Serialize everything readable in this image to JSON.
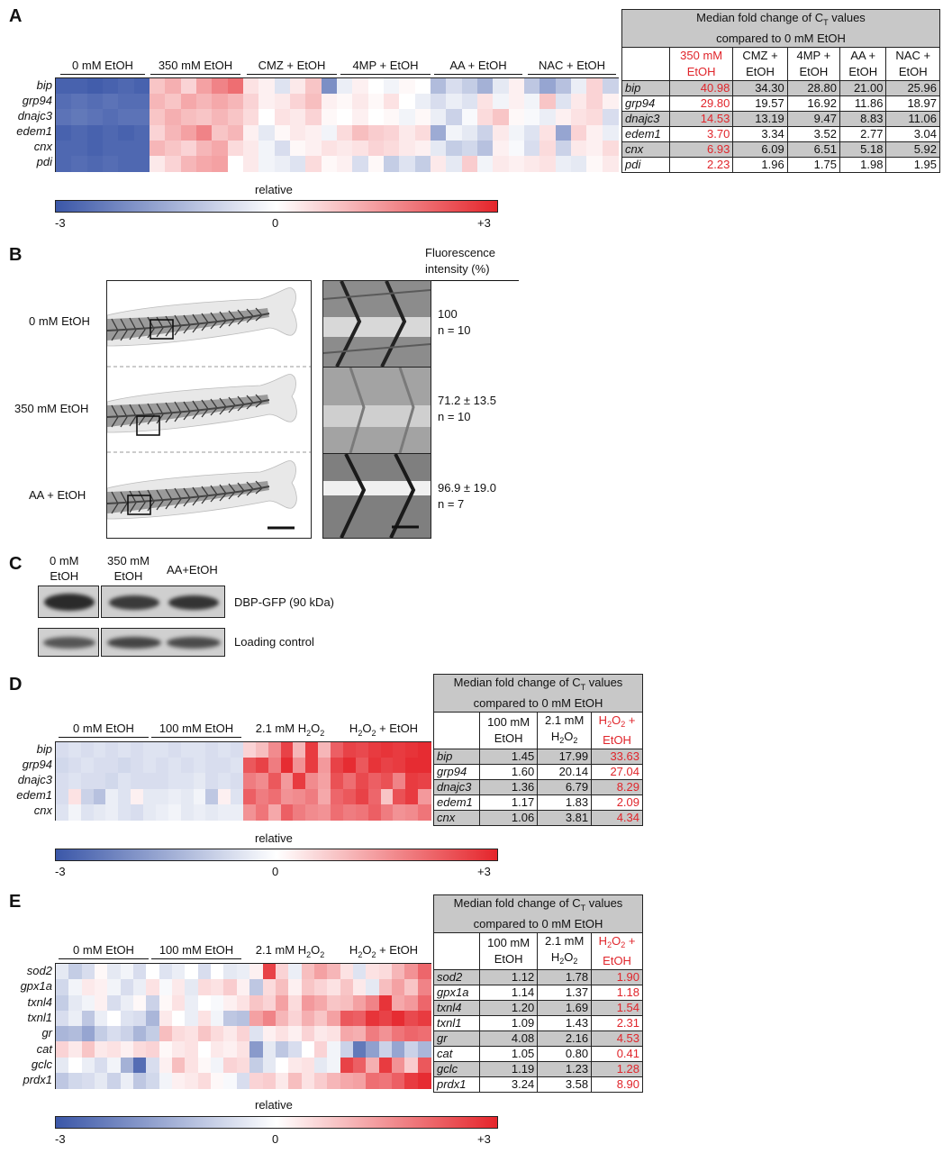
{
  "colorbar": {
    "label": "relative",
    "min": "-3",
    "mid": "0",
    "max": "+3"
  },
  "panels": {
    "A": {
      "letter": "A",
      "groups": [
        "0 mM EtOH",
        "350 mM EtOH",
        "CMZ + EtOH",
        "4MP + EtOH",
        "AA + EtOH",
        "NAC + EtOH"
      ],
      "genes": [
        "bip",
        "grp94",
        "dnajc3",
        "edem1",
        "cnx",
        "pdi"
      ],
      "table": {
        "title_line1": "Median fold change of C",
        "title_sub": "T",
        "title_line1_end": " values",
        "title_line2": "compared to 0 mM EtOH",
        "columns": [
          {
            "l1": "350 mM",
            "l2": "EtOH",
            "red": true
          },
          {
            "l1": "CMZ +",
            "l2": "EtOH",
            "red": false
          },
          {
            "l1": "4MP +",
            "l2": "EtOH",
            "red": false
          },
          {
            "l1": "AA +",
            "l2": "EtOH",
            "red": false
          },
          {
            "l1": "NAC +",
            "l2": "EtOH",
            "red": false
          }
        ],
        "rows": [
          {
            "gene": "bip",
            "values": [
              "40.98",
              "34.30",
              "28.80",
              "21.00",
              "25.96"
            ]
          },
          {
            "gene": "grp94",
            "values": [
              "29.80",
              "19.57",
              "16.92",
              "11.86",
              "18.97"
            ]
          },
          {
            "gene": "dnajc3",
            "values": [
              "14.53",
              "13.19",
              "9.47",
              "8.83",
              "11.06"
            ]
          },
          {
            "gene": "edem1",
            "values": [
              "3.70",
              "3.34",
              "3.52",
              "2.77",
              "3.04"
            ]
          },
          {
            "gene": "cnx",
            "values": [
              "6.93",
              "6.09",
              "6.51",
              "5.18",
              "5.92"
            ]
          },
          {
            "gene": "pdi",
            "values": [
              "2.23",
              "1.96",
              "1.75",
              "1.98",
              "1.95"
            ]
          }
        ]
      }
    },
    "B": {
      "letter": "B",
      "header_l1": "Fluorescence",
      "header_l2": "intensity (%)",
      "rows": [
        {
          "label": "0 mM EtOH",
          "value": "100",
          "n": "n = 10"
        },
        {
          "label": "350 mM EtOH",
          "value": "71.2 ± 13.5",
          "n": "n = 10"
        },
        {
          "label": "AA + EtOH",
          "value": "96.9 ± 19.0",
          "n": "n = 7"
        }
      ]
    },
    "C": {
      "letter": "C",
      "lanes": [
        {
          "l1": "0 mM",
          "l2": "EtOH"
        },
        {
          "l1": "350 mM",
          "l2": "EtOH"
        },
        {
          "l1": "AA+EtOH",
          "l2": ""
        }
      ],
      "band1_label": "DBP-GFP (90 kDa)",
      "band2_label": "Loading control"
    },
    "D": {
      "letter": "D",
      "groups": [
        "0 mM EtOH",
        "100 mM EtOH",
        "2.1 mM H",
        "H"
      ],
      "group_parts": [
        {
          "a": "0 mM EtOH",
          "sub": "",
          "b": ""
        },
        {
          "a": "100 mM EtOH",
          "sub": "",
          "b": ""
        },
        {
          "a": "2.1 mM H",
          "sub": "2",
          "b": "O",
          "sub2": "2",
          "c": ""
        },
        {
          "a": "H",
          "sub": "2",
          "b": "O",
          "sub2": "2",
          "c": " + EtOH"
        }
      ],
      "genes": [
        "bip",
        "grp94",
        "dnajc3",
        "edem1",
        "cnx"
      ],
      "table": {
        "title_line1": "Median fold change of C",
        "title_sub": "T",
        "title_line1_end": " values",
        "title_line2": "compared to 0 mM EtOH",
        "columns": [
          {
            "l1": "100 mM",
            "l2": "EtOH",
            "red": false
          },
          {
            "l1": "2.1 mM",
            "l2a": "H",
            "l2s": "2",
            "l2b": "O",
            "l2s2": "2",
            "red": false
          },
          {
            "l1a": "H",
            "l1s": "2",
            "l1b": "O",
            "l1s2": "2",
            "l1c": " +",
            "l2": "EtOH",
            "red": true
          }
        ],
        "rows": [
          {
            "gene": "bip",
            "values": [
              "1.45",
              "17.99",
              "33.63"
            ]
          },
          {
            "gene": "grp94",
            "values": [
              "1.60",
              "20.14",
              "27.04"
            ]
          },
          {
            "gene": "dnajc3",
            "values": [
              "1.36",
              "6.79",
              "8.29"
            ]
          },
          {
            "gene": "edem1",
            "values": [
              "1.17",
              "1.83",
              "2.09"
            ]
          },
          {
            "gene": "cnx",
            "values": [
              "1.06",
              "3.81",
              "4.34"
            ]
          }
        ]
      }
    },
    "E": {
      "letter": "E",
      "genes": [
        "sod2",
        "gpx1a",
        "txnl4",
        "txnl1",
        "gr",
        "cat",
        "gclc",
        "prdx1"
      ],
      "table": {
        "rows": [
          {
            "gene": "sod2",
            "values": [
              "1.12",
              "1.78",
              "1.90"
            ]
          },
          {
            "gene": "gpx1a",
            "values": [
              "1.14",
              "1.37",
              "1.18"
            ]
          },
          {
            "gene": "txnl4",
            "values": [
              "1.20",
              "1.69",
              "1.54"
            ]
          },
          {
            "gene": "txnl1",
            "values": [
              "1.09",
              "1.43",
              "2.31"
            ]
          },
          {
            "gene": "gr",
            "values": [
              "4.08",
              "2.16",
              "4.53"
            ]
          },
          {
            "gene": "cat",
            "values": [
              "1.05",
              "0.80",
              "0.41"
            ]
          },
          {
            "gene": "gclc",
            "values": [
              "1.19",
              "1.23",
              "1.28"
            ]
          },
          {
            "gene": "prdx1",
            "values": [
              "3.24",
              "3.58",
              "8.90"
            ]
          }
        ]
      }
    }
  },
  "heatmaps": {
    "A": [
      [
        -2.8,
        -2.8,
        -2.9,
        -2.8,
        -2.7,
        -2.8,
        0.8,
        1.1,
        0.6,
        1.3,
        1.7,
        2.0,
        0.4,
        0.2,
        -0.5,
        0.3,
        0.8,
        -2.0,
        -0.3,
        0.2,
        0.0,
        -0.2,
        0.1,
        0.0,
        -1.2,
        -0.6,
        -0.9,
        -1.4,
        -0.4,
        0.2,
        -1.0,
        -1.6,
        -1.1,
        -0.3,
        0.6,
        -0.8
      ],
      [
        -2.6,
        -2.5,
        -2.6,
        -2.5,
        -2.6,
        -2.6,
        1.0,
        0.8,
        1.2,
        1.0,
        1.2,
        1.0,
        0.6,
        0.2,
        0.3,
        0.6,
        0.9,
        0.2,
        0.1,
        0.3,
        0.1,
        0.4,
        0.0,
        -0.3,
        -0.6,
        -0.3,
        -0.5,
        0.4,
        -0.2,
        0.2,
        -0.2,
        0.8,
        -0.5,
        0.3,
        0.6,
        0.2
      ],
      [
        -2.5,
        -2.4,
        -2.5,
        -2.6,
        -2.5,
        -2.5,
        0.8,
        1.1,
        0.9,
        0.8,
        1.0,
        0.8,
        0.5,
        0.0,
        0.4,
        0.3,
        0.6,
        0.1,
        0.0,
        0.2,
        0.0,
        0.1,
        -0.2,
        0.1,
        -0.3,
        -0.8,
        -0.1,
        0.5,
        0.8,
        0.1,
        -0.1,
        -0.3,
        0.2,
        0.4,
        0.5,
        -0.6
      ],
      [
        -2.8,
        -2.7,
        -2.8,
        -2.7,
        -2.8,
        -2.7,
        0.6,
        1.0,
        1.3,
        1.7,
        0.8,
        1.0,
        0.2,
        -0.4,
        0.1,
        0.3,
        0.2,
        -0.2,
        0.5,
        0.9,
        0.7,
        0.6,
        0.3,
        0.5,
        -1.5,
        -0.2,
        -0.4,
        -0.8,
        0.3,
        -0.2,
        -0.5,
        0.4,
        -1.6,
        0.6,
        0.2,
        -0.3
      ],
      [
        -2.7,
        -2.7,
        -2.8,
        -2.7,
        -2.7,
        -2.7,
        1.0,
        0.8,
        0.6,
        1.0,
        1.2,
        0.5,
        0.3,
        -0.2,
        -0.6,
        0.1,
        0.2,
        0.4,
        0.3,
        0.4,
        0.6,
        0.5,
        0.3,
        0.2,
        -0.4,
        -0.9,
        -0.7,
        -1.1,
        0.2,
        -0.1,
        -0.6,
        0.5,
        -0.8,
        0.3,
        0.2,
        0.5
      ],
      [
        -2.7,
        -2.6,
        -2.7,
        -2.6,
        -2.7,
        -2.7,
        0.3,
        0.6,
        1.0,
        1.2,
        1.3,
        0.0,
        0.3,
        -0.2,
        -0.3,
        -0.5,
        0.5,
        0.1,
        0.2,
        -0.6,
        0.1,
        -0.9,
        -0.5,
        -0.9,
        0.3,
        -0.4,
        0.7,
        -0.2,
        0.3,
        0.2,
        0.3,
        0.4,
        -0.3,
        -0.4,
        0.1,
        0.3
      ]
    ],
    "D": [
      [
        -0.6,
        -0.5,
        -0.6,
        -0.5,
        -0.6,
        -0.5,
        -0.6,
        -0.5,
        -0.5,
        -0.6,
        -0.5,
        -0.5,
        -0.6,
        -0.5,
        -0.6,
        0.6,
        0.9,
        1.6,
        2.6,
        1.0,
        2.7,
        1.0,
        2.2,
        2.6,
        2.5,
        2.7,
        2.8,
        2.7,
        2.8,
        2.9
      ],
      [
        -0.7,
        -0.6,
        -0.5,
        -0.6,
        -0.6,
        -0.7,
        -0.6,
        -0.5,
        -0.6,
        -0.5,
        -0.6,
        -0.5,
        -0.6,
        -0.6,
        -0.5,
        2.3,
        2.6,
        1.8,
        2.9,
        1.5,
        2.7,
        1.4,
        2.6,
        2.9,
        2.3,
        2.8,
        2.6,
        2.7,
        2.9,
        2.9
      ],
      [
        -0.6,
        -0.5,
        -0.6,
        -0.6,
        -0.7,
        -0.5,
        -0.6,
        -0.6,
        -0.6,
        -0.5,
        -0.5,
        -0.4,
        -0.6,
        -0.5,
        -0.6,
        1.8,
        1.6,
        2.3,
        1.4,
        2.7,
        1.6,
        1.3,
        2.4,
        2.0,
        2.5,
        2.2,
        2.4,
        1.7,
        2.7,
        2.6
      ],
      [
        -0.6,
        0.4,
        -0.8,
        -1.1,
        -0.3,
        -0.5,
        0.2,
        -0.4,
        -0.4,
        -0.3,
        -0.4,
        -0.2,
        -1.0,
        0.2,
        -0.5,
        2.2,
        1.8,
        2.0,
        1.5,
        1.6,
        1.8,
        1.2,
        2.1,
        2.3,
        2.6,
        2.1,
        0.8,
        2.4,
        2.7,
        1.4
      ],
      [
        -0.5,
        -0.2,
        -0.5,
        -0.4,
        -0.3,
        -0.5,
        -0.6,
        -0.4,
        -0.3,
        -0.2,
        -0.4,
        -0.3,
        -0.4,
        -0.3,
        -0.3,
        1.5,
        1.9,
        1.2,
        2.2,
        1.8,
        1.6,
        1.5,
        2.0,
        1.8,
        1.9,
        2.2,
        1.8,
        1.5,
        1.6,
        1.9
      ]
    ],
    "E": [
      [
        -0.4,
        -0.9,
        -0.6,
        0.1,
        -0.4,
        -0.2,
        -0.6,
        0.0,
        -0.5,
        -0.3,
        0.0,
        -0.6,
        0.0,
        -0.4,
        -0.3,
        0.2,
        2.6,
        0.6,
        -0.3,
        0.9,
        1.3,
        1.0,
        0.4,
        -0.5,
        0.4,
        0.5,
        1.0,
        1.5,
        2.1
      ],
      [
        -0.7,
        -0.2,
        0.3,
        0.2,
        -0.2,
        -0.6,
        -0.3,
        0.4,
        -0.1,
        0.3,
        -0.4,
        0.5,
        0.4,
        0.7,
        0.2,
        -1.0,
        0.5,
        0.9,
        0.2,
        0.8,
        0.6,
        0.4,
        0.8,
        0.3,
        -0.4,
        0.9,
        1.3,
        0.8,
        1.7
      ],
      [
        -0.9,
        -0.4,
        -0.2,
        0.2,
        -0.6,
        -0.3,
        0.1,
        -0.8,
        0.1,
        0.4,
        -0.3,
        0.0,
        -0.1,
        0.2,
        0.4,
        0.8,
        0.6,
        1.3,
        0.5,
        1.4,
        1.2,
        0.8,
        0.9,
        1.3,
        1.7,
        2.8,
        1.2,
        1.4,
        2.1
      ],
      [
        -0.6,
        -0.3,
        -1.0,
        -0.3,
        0.0,
        -0.5,
        -0.6,
        -1.3,
        0.3,
        0.0,
        -0.3,
        0.4,
        -0.2,
        -1.0,
        -1.1,
        1.3,
        1.7,
        1.0,
        0.6,
        1.1,
        0.8,
        1.3,
        2.3,
        2.2,
        2.8,
        2.6,
        2.9,
        2.5,
        2.7
      ],
      [
        -1.3,
        -1.2,
        -1.6,
        -0.9,
        -0.6,
        -0.8,
        -1.3,
        -0.9,
        0.9,
        0.5,
        0.4,
        0.8,
        0.5,
        0.3,
        0.6,
        -0.5,
        0.2,
        0.4,
        0.2,
        0.6,
        0.3,
        0.4,
        1.2,
        1.1,
        1.8,
        1.5,
        1.9,
        2.1,
        2.0
      ],
      [
        0.6,
        0.3,
        0.8,
        0.3,
        0.4,
        0.2,
        0.5,
        0.6,
        0.1,
        0.3,
        0.4,
        0.0,
        0.3,
        0.2,
        0.4,
        -1.8,
        -0.4,
        -1.0,
        -0.6,
        0.0,
        0.6,
        -0.2,
        -0.8,
        -2.4,
        -1.7,
        -0.8,
        -1.6,
        -0.8,
        -1.3
      ],
      [
        -0.4,
        0.0,
        -0.3,
        -0.6,
        -0.2,
        -1.4,
        -2.6,
        -0.6,
        0.2,
        0.9,
        0.4,
        0.1,
        -0.2,
        0.6,
        0.5,
        -0.9,
        -0.4,
        0.0,
        0.3,
        0.4,
        -0.4,
        -0.2,
        2.6,
        2.2,
        1.1,
        2.7,
        1.5,
        0.7,
        2.3
      ],
      [
        -1.0,
        -0.7,
        -0.6,
        -0.4,
        -0.8,
        -0.3,
        -1.0,
        -0.7,
        -0.2,
        0.2,
        0.3,
        0.5,
        0.1,
        -0.1,
        -0.6,
        0.6,
        0.7,
        0.3,
        0.9,
        0.4,
        0.7,
        1.0,
        1.2,
        1.3,
        2.0,
        1.9,
        2.2,
        2.7,
        2.9
      ]
    ]
  }
}
